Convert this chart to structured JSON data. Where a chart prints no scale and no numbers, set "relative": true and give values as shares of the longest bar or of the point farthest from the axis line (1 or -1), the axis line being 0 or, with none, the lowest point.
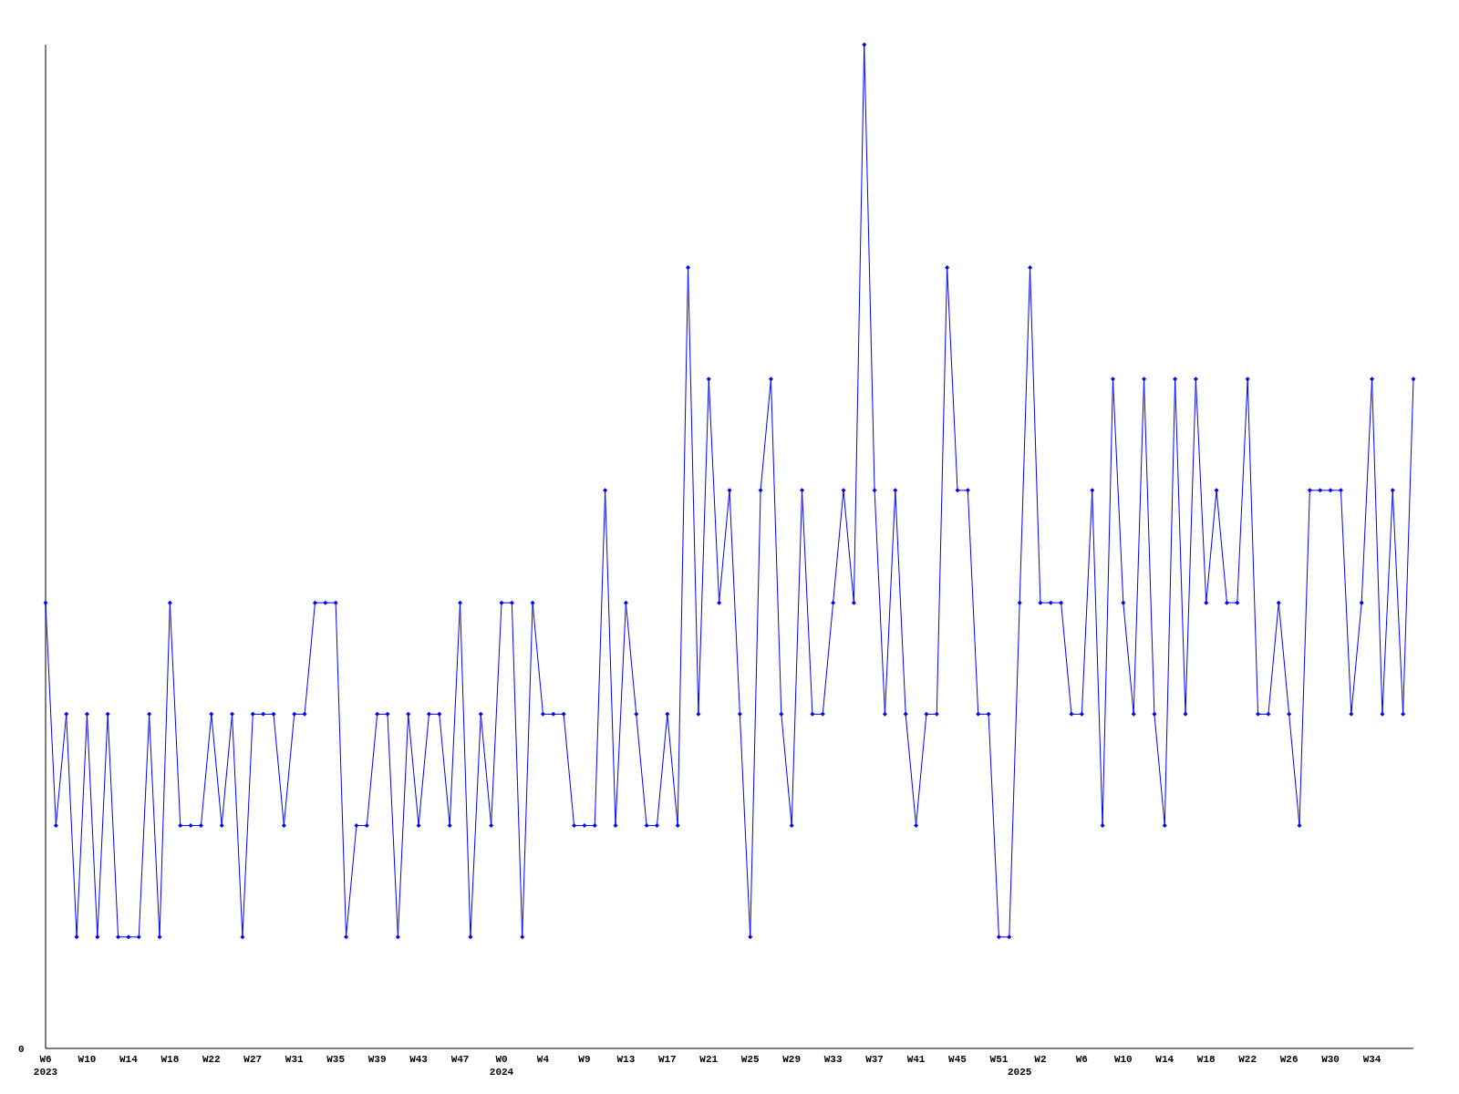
{
  "chart_data": {
    "type": "line",
    "relative": true,
    "marker": "diamond",
    "annotations": [
      "0"
    ],
    "categories": [
      "W6\n2023",
      null,
      null,
      null,
      "W10",
      null,
      null,
      null,
      "W14",
      null,
      null,
      null,
      "W18",
      null,
      null,
      null,
      "W22",
      null,
      null,
      null,
      "W27",
      null,
      null,
      null,
      "W31",
      null,
      null,
      null,
      "W35",
      null,
      null,
      null,
      "W39",
      null,
      null,
      null,
      "W43",
      null,
      null,
      null,
      "W47",
      null,
      null,
      null,
      "W0\n2024",
      null,
      null,
      null,
      "W4",
      null,
      null,
      null,
      "W9",
      null,
      null,
      null,
      "W13",
      null,
      null,
      null,
      "W17",
      null,
      null,
      null,
      "W21",
      null,
      null,
      null,
      "W25",
      null,
      null,
      null,
      "W29",
      null,
      null,
      null,
      "W33",
      null,
      null,
      null,
      "W37",
      null,
      null,
      null,
      "W41",
      null,
      null,
      null,
      "W45",
      null,
      null,
      null,
      "W51",
      null,
      "\n2025",
      null,
      "W2",
      null,
      null,
      null,
      "W6",
      null,
      null,
      null,
      "W10",
      null,
      null,
      null,
      "W14",
      null,
      null,
      null,
      "W18",
      null,
      null,
      null,
      "W22",
      null,
      null,
      null,
      "W26",
      null,
      null,
      null,
      "W30",
      null,
      null,
      null,
      "W34",
      null,
      null,
      null,
      null
    ],
    "series": [
      {
        "color": "#0000ff",
        "values": [
          0.444,
          0.222,
          0.333,
          0.111,
          0.333,
          0.111,
          0.333,
          0.111,
          0.111,
          0.111,
          0.333,
          0.111,
          0.444,
          0.222,
          0.222,
          0.222,
          0.333,
          0.222,
          0.333,
          0.111,
          0.333,
          0.333,
          0.333,
          0.222,
          0.333,
          0.333,
          0.444,
          0.444,
          0.444,
          0.111,
          0.222,
          0.222,
          0.333,
          0.333,
          0.111,
          0.333,
          0.222,
          0.333,
          0.333,
          0.222,
          0.444,
          0.111,
          0.333,
          0.222,
          0.444,
          0.444,
          0.111,
          0.444,
          0.333,
          0.333,
          0.333,
          0.222,
          0.222,
          0.222,
          0.556,
          0.222,
          0.444,
          0.333,
          0.222,
          0.222,
          0.333,
          0.222,
          0.778,
          0.333,
          0.667,
          0.444,
          0.556,
          0.333,
          0.111,
          0.556,
          0.667,
          0.333,
          0.222,
          0.556,
          0.333,
          0.333,
          0.444,
          0.556,
          0.444,
          1,
          0.556,
          0.333,
          0.556,
          0.333,
          0.222,
          0.333,
          0.333,
          0.778,
          0.556,
          0.556,
          0.333,
          0.333,
          0.111,
          0.111,
          0.444,
          0.778,
          0.444,
          0.444,
          0.444,
          0.333,
          0.333,
          0.556,
          0.222,
          0.667,
          0.444,
          0.333,
          0.667,
          0.333,
          0.222,
          0.667,
          0.333,
          0.667,
          0.444,
          0.556,
          0.444,
          0.444,
          0.667,
          0.333,
          0.333,
          0.444,
          0.333,
          0.222,
          0.556,
          0.556,
          0.556,
          0.556,
          0.333,
          0.444,
          0.667,
          0.333,
          0.556,
          0.333,
          0.667
        ]
      }
    ]
  }
}
